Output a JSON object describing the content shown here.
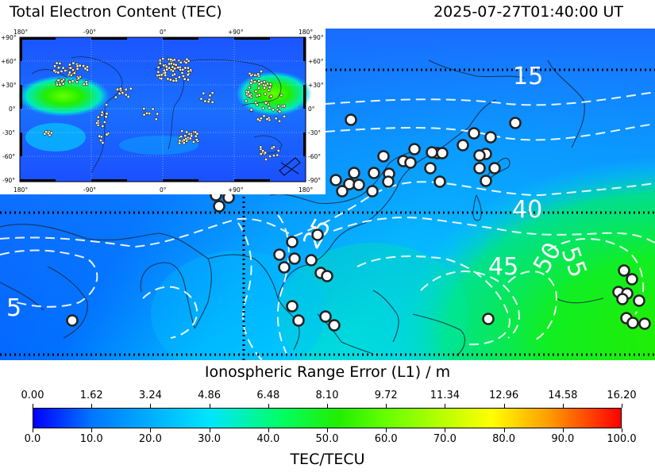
{
  "header": {
    "title": "Total Electron Content (TEC)",
    "timestamp": "2025-07-27T01:40:00 UT"
  },
  "main_map": {
    "contour_labels": [
      "15",
      "40",
      "25",
      "45",
      "50",
      "55",
      "5"
    ]
  },
  "inset_map": {
    "top_lon_labels": [
      "180°",
      "-90°",
      "0°",
      "+90°",
      "180°"
    ],
    "bottom_lon_labels": [
      "180°",
      "-90°",
      "0°",
      "+90°",
      "180°"
    ],
    "left_lat_labels": [
      "+90°",
      "+60°",
      "+30°",
      "0°",
      "-30°",
      "-60°",
      "-90°"
    ],
    "right_lat_labels": [
      "+90°",
      "+60°",
      "+30°",
      "0°",
      "-30°",
      "-60°",
      "-90°"
    ]
  },
  "range_error_scale": {
    "title": "Ionospheric Range Error (L1) / m",
    "labels": [
      "0.00",
      "1.62",
      "3.24",
      "4.86",
      "6.48",
      "8.10",
      "9.72",
      "11.34",
      "12.96",
      "14.58",
      "16.20"
    ]
  },
  "tec_scale": {
    "title": "TEC/TECU",
    "labels": [
      "0.0",
      "10.0",
      "20.0",
      "30.0",
      "40.0",
      "50.0",
      "60.0",
      "70.0",
      "80.0",
      "90.0",
      "100.0"
    ],
    "colors": [
      "#0000ff",
      "#0077ff",
      "#00e5ff",
      "#00ff66",
      "#22ee00",
      "#66ff00",
      "#ffff00",
      "#ff9900",
      "#ff0000"
    ]
  }
}
